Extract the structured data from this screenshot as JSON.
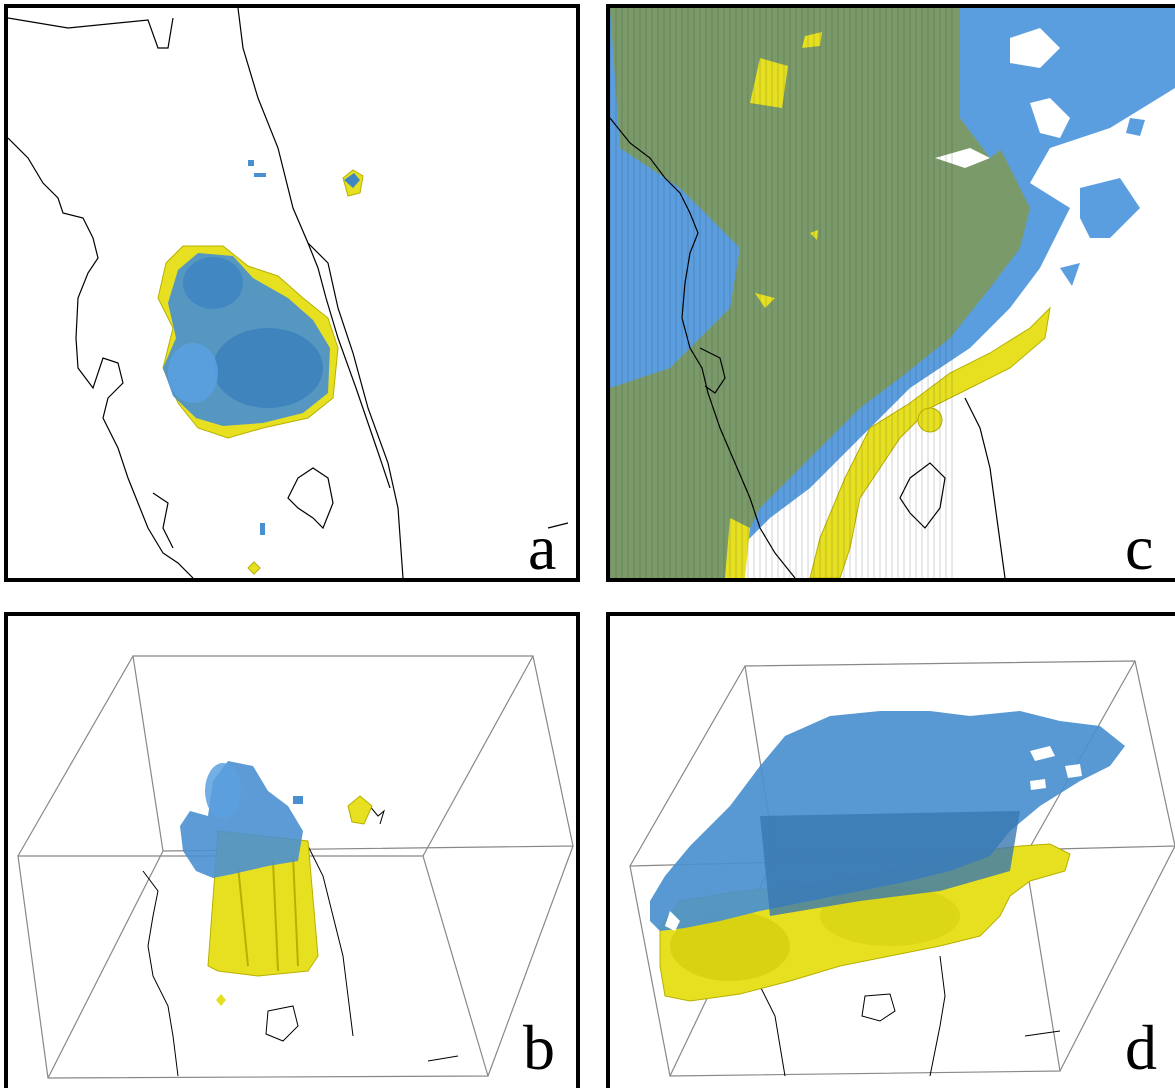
{
  "figure": {
    "panels": [
      {
        "id": "a",
        "label": "a",
        "view": "top-down"
      },
      {
        "id": "b",
        "label": "b",
        "view": "3d-box"
      },
      {
        "id": "c",
        "label": "c",
        "view": "top-down"
      },
      {
        "id": "d",
        "label": "d",
        "view": "3d-box"
      }
    ],
    "colors": {
      "isosurface_blue": "#4a90d0",
      "isosurface_blue_dark": "#2e6ea8",
      "isosurface_yellow": "#e6e020",
      "isosurface_yellow_dark": "#b8b000",
      "overlap_green": "#7a9a6a",
      "coastline": "#000000",
      "frame": "#000000",
      "background": "#ffffff"
    }
  }
}
